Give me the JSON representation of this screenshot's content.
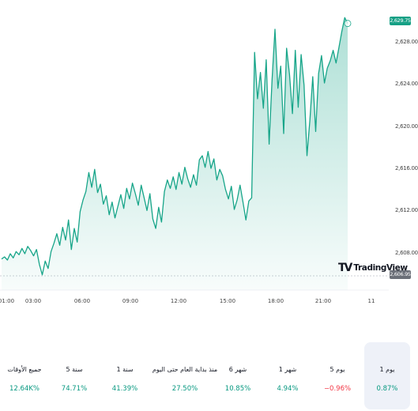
{
  "chart_data": {
    "type": "area",
    "y_axis_ticks": [
      "2,628.00",
      "2,624.00",
      "2,620.00",
      "2,616.00",
      "2,612.00",
      "2,608.00"
    ],
    "y_tick_values": [
      2628,
      2624,
      2620,
      2616,
      2612,
      2608
    ],
    "x_axis_ticks": [
      "01:00",
      "03:00",
      "06:00",
      "09:00",
      "12:00",
      "15:00",
      "18:00",
      "21:00",
      "11"
    ],
    "ylim": [
      2604.6,
      2631.6
    ],
    "last_price_label": "2,629.75",
    "base_price_label": "2,606.95",
    "last_value": 2629.75,
    "base_value": 2606.95,
    "line_color": "#17a589",
    "fill_color": "#b9e6d8",
    "series": [
      {
        "values": [
          2607.4,
          2607.6,
          2607.3,
          2607.9,
          2607.5,
          2608.1,
          2607.8,
          2608.4,
          2607.9,
          2608.6,
          2608.2,
          2607.7,
          2608.3,
          2606.9,
          2605.9,
          2607.2,
          2606.5,
          2608.1,
          2608.9,
          2609.8,
          2608.7,
          2610.4,
          2609.2,
          2611.1,
          2608.3,
          2610.3,
          2609.0,
          2611.9,
          2613.0,
          2613.8,
          2615.6,
          2614.2,
          2615.9,
          2613.7,
          2614.5,
          2612.6,
          2613.4,
          2611.6,
          2612.8,
          2611.3,
          2612.4,
          2613.5,
          2612.2,
          2614.1,
          2613.1,
          2614.6,
          2613.6,
          2612.5,
          2614.4,
          2613.2,
          2612.0,
          2613.6,
          2611.2,
          2610.3,
          2612.3,
          2610.9,
          2613.8,
          2614.9,
          2614.1,
          2615.2,
          2614.0,
          2615.6,
          2614.5,
          2616.1,
          2615.0,
          2614.2,
          2615.4,
          2614.4,
          2616.8,
          2617.2,
          2616.1,
          2617.6,
          2616.0,
          2616.9,
          2614.9,
          2615.9,
          2615.3,
          2614.0,
          2613.1,
          2614.3,
          2612.1,
          2613.0,
          2614.4,
          2612.8,
          2611.1,
          2612.9,
          2613.2,
          2627.0,
          2622.6,
          2625.1,
          2621.7,
          2626.3,
          2618.3,
          2624.4,
          2629.2,
          2623.6,
          2625.7,
          2619.3,
          2627.4,
          2624.9,
          2621.2,
          2627.2,
          2621.8,
          2626.8,
          2623.9,
          2617.2,
          2620.6,
          2624.7,
          2619.5,
          2625.0,
          2626.7,
          2624.1,
          2625.5,
          2626.2,
          2627.2,
          2626.0,
          2627.5,
          2629.0,
          2630.3,
          2629.75
        ]
      }
    ]
  },
  "performance": [
    {
      "label": "1 يوم",
      "value": "0.87%",
      "direction": "up",
      "selected": true
    },
    {
      "label": "5 يوم",
      "value": "−0.96%",
      "direction": "down",
      "selected": false
    },
    {
      "label": "1 شهر",
      "value": "4.94%",
      "direction": "up",
      "selected": false
    },
    {
      "label": "6 شهر",
      "value": "10.85%",
      "direction": "up",
      "selected": false
    },
    {
      "label": "منذ بداية العام حتى اليوم",
      "value": "27.50%",
      "direction": "up",
      "selected": false
    },
    {
      "label": "1 سنة",
      "value": "41.39%",
      "direction": "up",
      "selected": false
    },
    {
      "label": "5 سنة",
      "value": "74.71%",
      "direction": "up",
      "selected": false
    },
    {
      "label": "جميع الأوقات",
      "value": "12.64K%",
      "direction": "up",
      "selected": false
    }
  ],
  "branding": {
    "logo_mark": "TV",
    "logo_text": "TradingView"
  },
  "colors": {
    "up": "#089981",
    "down": "#f23645",
    "selected_bg": "#eef1f8"
  }
}
